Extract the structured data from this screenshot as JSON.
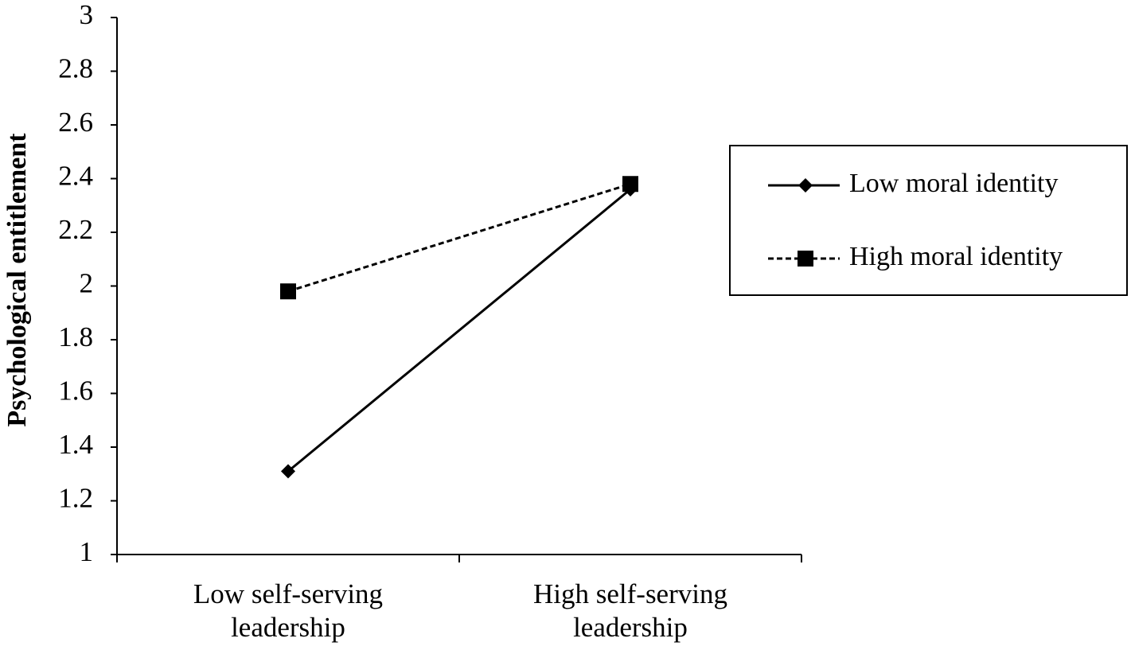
{
  "chart_data": {
    "type": "line",
    "ylabel": "Psychological entitlement",
    "categories": [
      "Low self-serving leadership",
      "High self-serving leadership"
    ],
    "series": [
      {
        "name": "Low moral identity",
        "color": "#000000",
        "marker": "diamond",
        "dashed": false,
        "values": [
          1.31,
          2.36
        ]
      },
      {
        "name": "High moral identity",
        "color": "#000000",
        "marker": "square",
        "dashed": true,
        "values": [
          1.98,
          2.38
        ]
      }
    ],
    "ylim": [
      1,
      3
    ],
    "yticks": [
      1,
      1.2,
      1.4,
      1.6,
      1.8,
      2,
      2.2,
      2.4,
      2.6,
      2.8,
      3
    ],
    "grid": false,
    "legend": "right"
  }
}
